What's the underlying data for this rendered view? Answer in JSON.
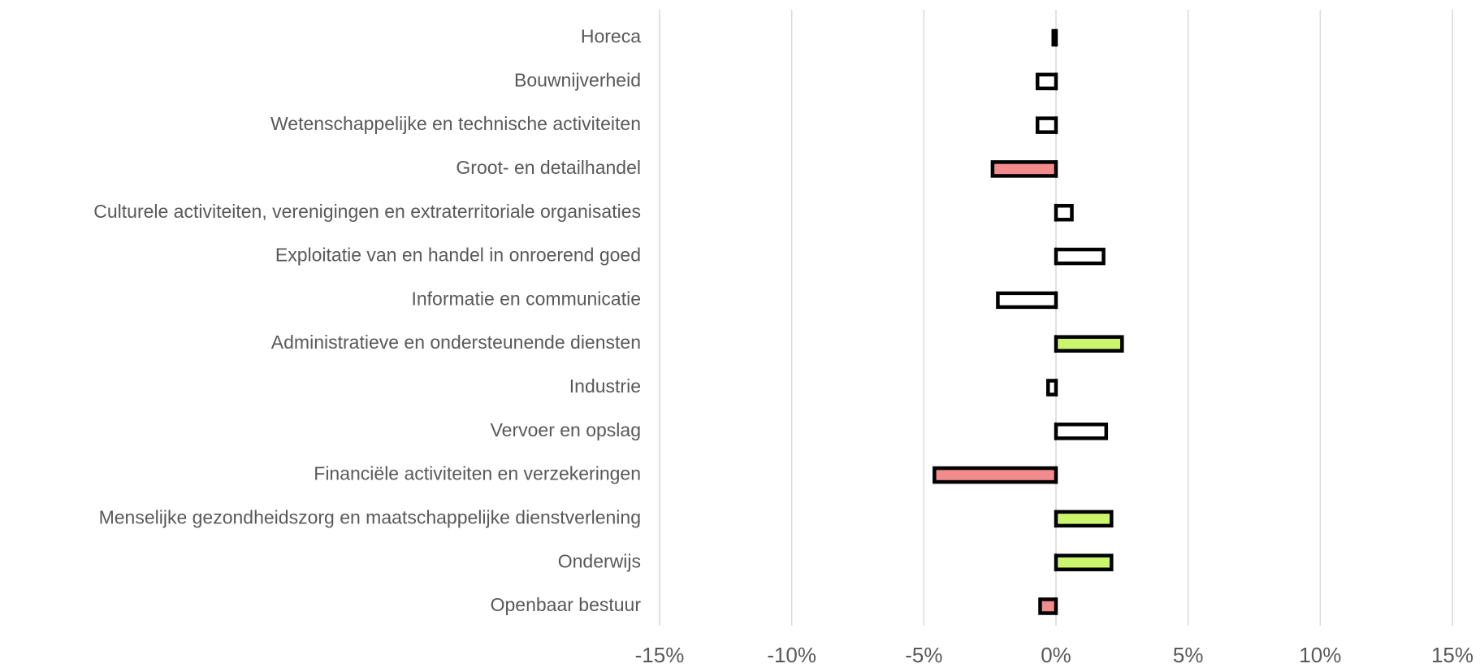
{
  "chart_data": {
    "type": "hbar",
    "categories": [
      "Horeca",
      "Bouwnijverheid",
      "Wetenschappelijke en technische activiteiten",
      "Groot- en detailhandel",
      "Culturele activiteiten, verenigingen en extraterritoriale organisaties",
      "Exploitatie van en handel in onroerend goed",
      "Informatie en communicatie",
      "Administratieve en ondersteunende diensten",
      "Industrie",
      "Vervoer en opslag",
      "Financiële activiteiten en verzekeringen",
      "Menselijke gezondheidszorg en maatschappelijke dienstverlening",
      "Onderwijs",
      "Openbaar bestuur"
    ],
    "values": [
      -0.1,
      -0.7,
      -0.7,
      -2.4,
      0.6,
      1.8,
      -2.2,
      2.5,
      -0.3,
      1.9,
      -4.6,
      2.1,
      2.1,
      -0.6
    ],
    "colors": [
      "#ffffff",
      "#ffffff",
      "#ffffff",
      "#f28b8b",
      "#ffffff",
      "#ffffff",
      "#ffffff",
      "#ccf56e",
      "#ffffff",
      "#ffffff",
      "#f28b8b",
      "#ccf56e",
      "#ccf56e",
      "#f28b8b"
    ],
    "xlim": [
      -15,
      15
    ],
    "xticks": [
      {
        "value": -15,
        "label": "-15%"
      },
      {
        "value": -10,
        "label": "-10%"
      },
      {
        "value": -5,
        "label": "-5%"
      },
      {
        "value": 0,
        "label": "0%"
      },
      {
        "value": 5,
        "label": "5%"
      },
      {
        "value": 10,
        "label": "10%"
      },
      {
        "value": 15,
        "label": "15%"
      }
    ],
    "grid": true
  }
}
